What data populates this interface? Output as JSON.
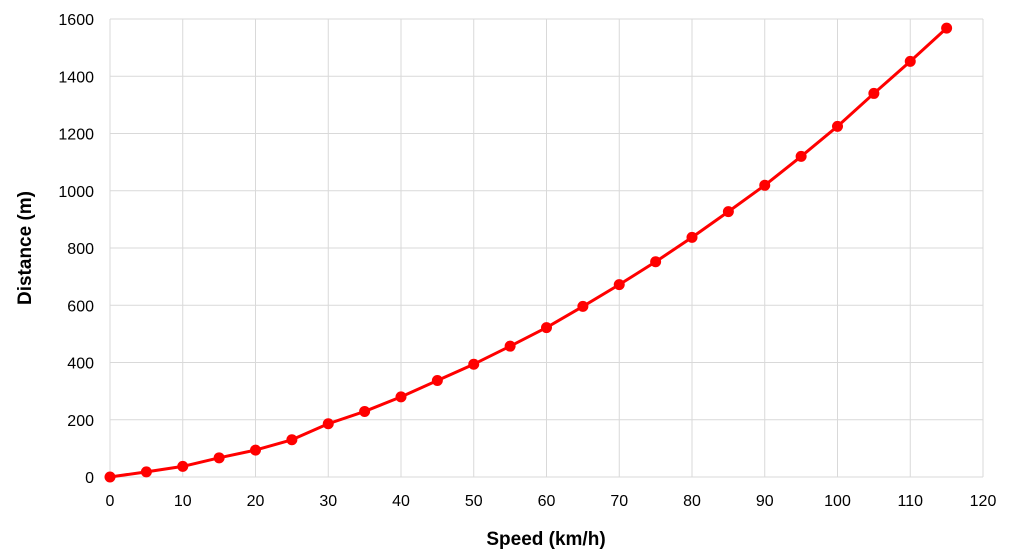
{
  "chart_data": {
    "type": "line",
    "title": "",
    "xlabel": "Speed (km/h)",
    "ylabel": "Distance  (m)",
    "xlim": [
      0,
      120
    ],
    "ylim": [
      0,
      1600
    ],
    "x_ticks": [
      0,
      10,
      20,
      30,
      40,
      50,
      60,
      70,
      80,
      90,
      100,
      110,
      120
    ],
    "y_ticks": [
      0,
      200,
      400,
      600,
      800,
      1000,
      1200,
      1400,
      1600
    ],
    "grid": true,
    "legend": "none",
    "series": [
      {
        "color": "#ff0000",
        "marker": "circle",
        "x": [
          0,
          5,
          10,
          15,
          20,
          25,
          30,
          35,
          40,
          45,
          50,
          55,
          60,
          65,
          70,
          75,
          80,
          85,
          90,
          95,
          100,
          105,
          110,
          115
        ],
        "y": [
          0,
          18,
          37,
          67,
          94,
          130,
          186,
          229,
          280,
          337,
          394,
          457,
          522,
          596,
          672,
          752,
          837,
          927,
          1019,
          1120,
          1225,
          1340,
          1452,
          1568
        ]
      }
    ]
  }
}
